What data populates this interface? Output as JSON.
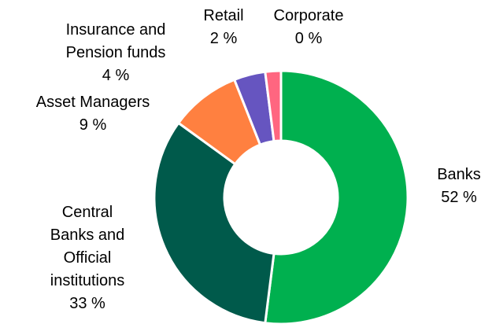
{
  "chart_data": {
    "type": "donut",
    "categories": [
      "Banks",
      "Central Banks and Official institutions",
      "Asset Managers",
      "Insurance and Pension funds",
      "Retail",
      "Corporate"
    ],
    "values": [
      52,
      33,
      9,
      4,
      2,
      0
    ],
    "value_labels": [
      "52 %",
      "33 %",
      "9 %",
      "4 %",
      "2 %",
      "0 %"
    ],
    "colors": [
      "#00b04f",
      "#005a4b",
      "#ff8040",
      "#6655c0",
      "#ff6680",
      "#c00000"
    ]
  }
}
